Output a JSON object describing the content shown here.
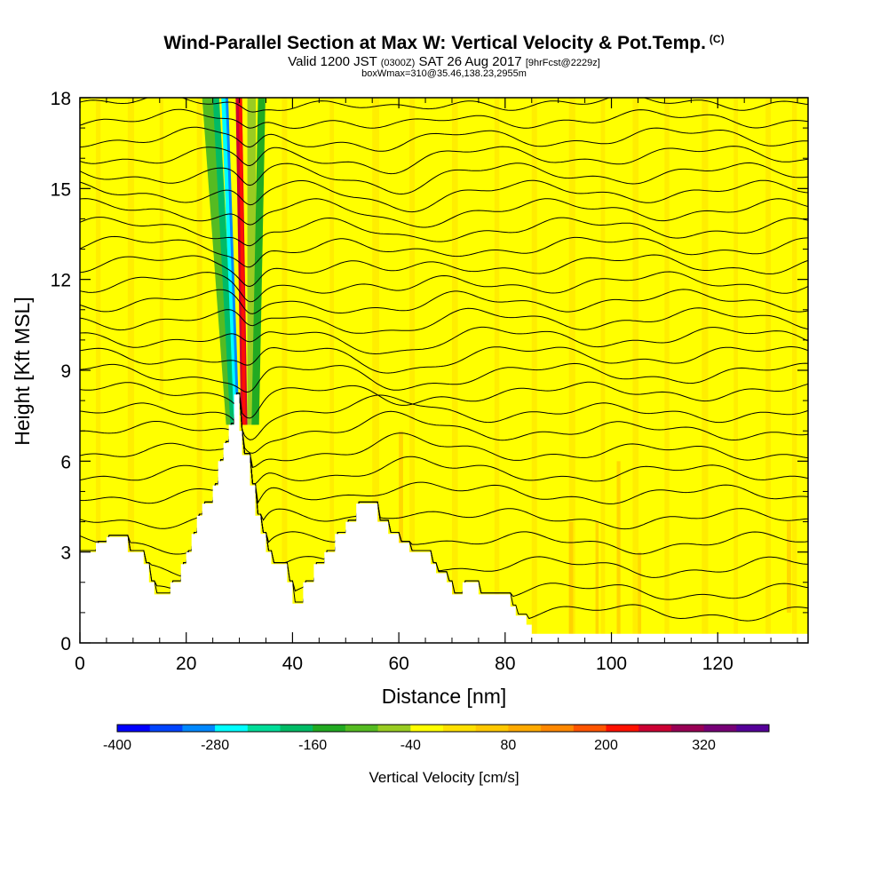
{
  "title": "Wind-Parallel Section at Max W: Vertical Velocity & Pot.Temp.",
  "copyright_mark": "(C)",
  "subtitle_main": "Valid 1200 JST",
  "subtitle_utc": "(0300Z)",
  "subtitle_date": "SAT 26 Aug 2017",
  "subtitle_fcst": "[9hrFcst@2229z]",
  "box_info": "boxWmax=310@35.46,138.23,2955m",
  "chart_data": {
    "type": "heatmap",
    "title": "Wind-Parallel Section at Max W: Vertical Velocity & Pot.Temp.",
    "xlabel": "Distance [nm]",
    "ylabel": "Height [Kft MSL]",
    "xlim": [
      0,
      137
    ],
    "ylim": [
      0,
      18
    ],
    "x_ticks": [
      0,
      20,
      40,
      60,
      80,
      100,
      120
    ],
    "y_ticks": [
      0,
      3,
      6,
      9,
      12,
      15,
      18
    ],
    "grid": false,
    "colorbar": {
      "label": "Vertical Velocity [cm/s]",
      "ticks": [
        -400,
        -280,
        -160,
        -40,
        80,
        200,
        320
      ],
      "levels": [
        -400,
        -360,
        -320,
        -280,
        -240,
        -200,
        -160,
        -120,
        -80,
        -40,
        0,
        40,
        80,
        120,
        160,
        200,
        240,
        280,
        320,
        360
      ],
      "colors": [
        "#0000ff",
        "#0044ff",
        "#0088ff",
        "#00ffff",
        "#00dd99",
        "#00bb66",
        "#22aa22",
        "#55bb22",
        "#99cc22",
        "#ffff00",
        "#ffe000",
        "#ffc800",
        "#ffaa00",
        "#ff8800",
        "#ff5500",
        "#ff1100",
        "#cc0033",
        "#990055",
        "#770077",
        "#550099"
      ]
    },
    "background_w": 0,
    "terrain": [
      [
        0,
        3
      ],
      [
        3,
        3
      ],
      [
        3,
        3.3
      ],
      [
        5,
        3.3
      ],
      [
        5,
        3.5
      ],
      [
        9,
        3.5
      ],
      [
        9,
        3
      ],
      [
        12,
        3
      ],
      [
        12,
        2.6
      ],
      [
        13,
        2.6
      ],
      [
        13,
        2
      ],
      [
        14,
        2
      ],
      [
        14,
        1.6
      ],
      [
        17,
        1.6
      ],
      [
        17,
        2
      ],
      [
        19,
        2
      ],
      [
        19,
        2.6
      ],
      [
        20,
        2.6
      ],
      [
        20,
        3
      ],
      [
        21,
        3
      ],
      [
        21,
        3.6
      ],
      [
        22,
        3.6
      ],
      [
        22,
        4.2
      ],
      [
        23,
        4.2
      ],
      [
        23,
        4.6
      ],
      [
        25,
        4.6
      ],
      [
        25,
        5.2
      ],
      [
        26,
        5.2
      ],
      [
        26,
        6
      ],
      [
        27,
        6
      ],
      [
        27,
        6.6
      ],
      [
        28,
        6.6
      ],
      [
        28,
        7.2
      ],
      [
        29,
        7.2
      ],
      [
        29,
        8.2
      ],
      [
        30,
        8.2
      ],
      [
        30,
        7
      ],
      [
        30.5,
        7
      ],
      [
        30.5,
        6.2
      ],
      [
        32,
        6.2
      ],
      [
        32,
        5.2
      ],
      [
        33,
        5.2
      ],
      [
        33,
        4.2
      ],
      [
        34,
        4.2
      ],
      [
        34,
        3.6
      ],
      [
        35,
        3.6
      ],
      [
        35,
        3
      ],
      [
        36,
        3
      ],
      [
        36,
        2.6
      ],
      [
        39,
        2.6
      ],
      [
        39,
        2
      ],
      [
        40,
        2
      ],
      [
        40,
        1.3
      ],
      [
        42,
        1.3
      ],
      [
        42,
        2
      ],
      [
        44,
        2
      ],
      [
        44,
        2.6
      ],
      [
        46,
        2.6
      ],
      [
        46,
        3
      ],
      [
        48,
        3
      ],
      [
        48,
        3.6
      ],
      [
        50,
        3.6
      ],
      [
        50,
        4
      ],
      [
        52,
        4
      ],
      [
        52,
        4.6
      ],
      [
        56,
        4.6
      ],
      [
        56,
        4
      ],
      [
        58,
        4
      ],
      [
        58,
        3.6
      ],
      [
        60,
        3.6
      ],
      [
        60,
        3.3
      ],
      [
        62,
        3.3
      ],
      [
        62,
        3
      ],
      [
        66,
        3
      ],
      [
        66,
        2.6
      ],
      [
        67,
        2.6
      ],
      [
        67,
        2.3
      ],
      [
        69,
        2.3
      ],
      [
        69,
        2
      ],
      [
        70,
        2
      ],
      [
        70,
        1.6
      ],
      [
        72,
        1.6
      ],
      [
        72,
        2
      ],
      [
        75,
        2
      ],
      [
        75,
        1.6
      ],
      [
        81,
        1.6
      ],
      [
        81,
        1.2
      ],
      [
        82,
        1.2
      ],
      [
        82,
        0.9
      ],
      [
        84,
        0.9
      ],
      [
        84,
        0.6
      ],
      [
        85,
        0.6
      ],
      [
        85,
        0.3
      ],
      [
        137,
        0.3
      ]
    ],
    "theta_contours": [
      {
        "base": 1.0,
        "wave": 0.2,
        "dip": -1.2,
        "dip_x": 32
      },
      {
        "base": 1.7,
        "wave": 0.22,
        "dip": -1.0,
        "dip_x": 32
      },
      {
        "base": 2.5,
        "wave": 0.25,
        "dip": -1.0,
        "dip_x": 32
      },
      {
        "base": 3.3,
        "wave": 0.25,
        "dip": -0.9,
        "dip_x": 32
      },
      {
        "base": 4.1,
        "wave": 0.22,
        "dip": -0.8,
        "dip_x": 32
      },
      {
        "base": 4.9,
        "wave": 0.22,
        "dip": -0.8,
        "dip_x": 32
      },
      {
        "base": 5.6,
        "wave": 0.22,
        "dip": -0.7,
        "dip_x": 32
      },
      {
        "base": 6.3,
        "wave": 0.2,
        "dip": -0.6,
        "dip_x": 32
      },
      {
        "base": 7.0,
        "wave": 0.2,
        "dip": -0.6,
        "dip_x": 32
      },
      {
        "base": 7.6,
        "wave": 0.2,
        "dip": -0.6,
        "dip_x": 32
      },
      {
        "base": 8.3,
        "wave": 0.2,
        "dip": -0.6,
        "dip_x": 32
      },
      {
        "base": 8.9,
        "wave": 0.25,
        "dip": -0.5,
        "dip_x": 32
      },
      {
        "base": 9.5,
        "wave": 0.25,
        "dip": -0.5,
        "dip_x": 32
      },
      {
        "base": 10.1,
        "wave": 0.25,
        "dip": -0.5,
        "dip_x": 32
      },
      {
        "base": 10.7,
        "wave": 0.25,
        "dip": -0.5,
        "dip_x": 32
      },
      {
        "base": 11.3,
        "wave": 0.25,
        "dip": -0.5,
        "dip_x": 32
      },
      {
        "base": 11.9,
        "wave": 0.25,
        "dip": -0.5,
        "dip_x": 32
      },
      {
        "base": 12.5,
        "wave": 0.25,
        "dip": -0.5,
        "dip_x": 32
      },
      {
        "base": 13.1,
        "wave": 0.25,
        "dip": -0.5,
        "dip_x": 32
      },
      {
        "base": 13.7,
        "wave": 0.25,
        "dip": -0.5,
        "dip_x": 32
      },
      {
        "base": 14.3,
        "wave": 0.25,
        "dip": -0.5,
        "dip_x": 32
      },
      {
        "base": 14.9,
        "wave": 0.25,
        "dip": -0.5,
        "dip_x": 32
      },
      {
        "base": 15.5,
        "wave": 0.25,
        "dip": -0.5,
        "dip_x": 32
      },
      {
        "base": 16.1,
        "wave": 0.25,
        "dip": -0.5,
        "dip_x": 32
      },
      {
        "base": 16.7,
        "wave": 0.25,
        "dip": -0.5,
        "dip_x": 32
      },
      {
        "base": 17.3,
        "wave": 0.2,
        "dip": -0.4,
        "dip_x": 32
      },
      {
        "base": 17.85,
        "wave": 0.15,
        "dip": -0.3,
        "dip_x": 32
      }
    ]
  }
}
